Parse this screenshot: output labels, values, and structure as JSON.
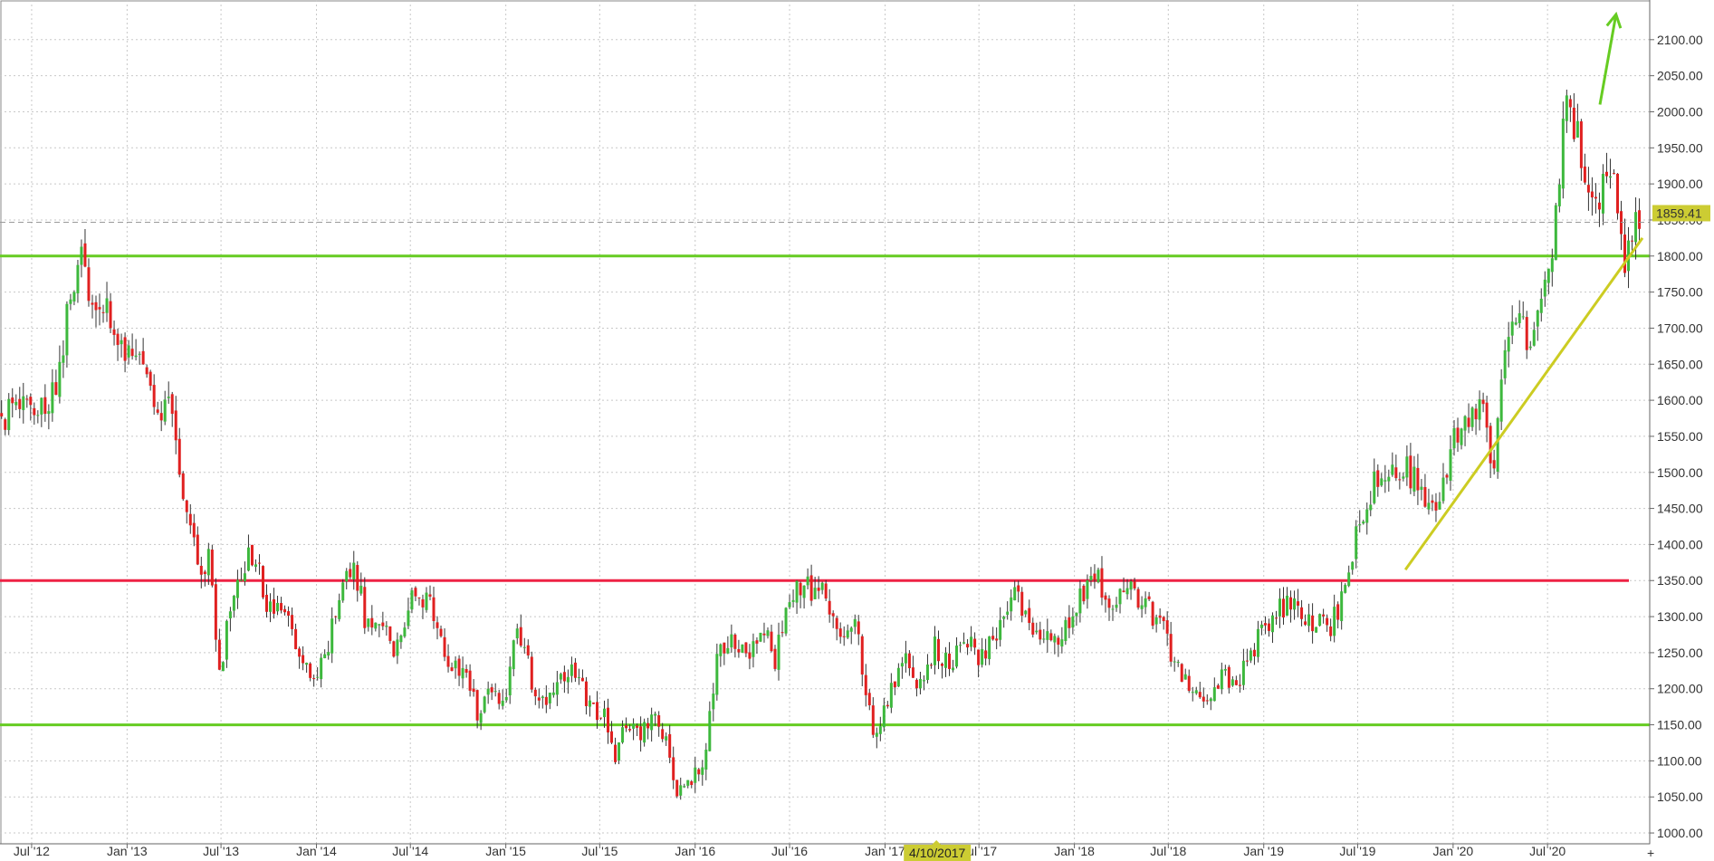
{
  "chart_data": {
    "type": "candlestick",
    "title": "",
    "xlabel": "",
    "ylabel": "",
    "ylim": [
      985,
      2155
    ],
    "grid": true,
    "y_ticks": [
      "1000.00",
      "1050.00",
      "1100.00",
      "1150.00",
      "1200.00",
      "1250.00",
      "1300.00",
      "1350.00",
      "1400.00",
      "1450.00",
      "1500.00",
      "1550.00",
      "1600.00",
      "1650.00",
      "1700.00",
      "1750.00",
      "1800.00",
      "1850.00",
      "1900.00",
      "1950.00",
      "2000.00",
      "2050.00",
      "2100.00"
    ],
    "x_ticks": [
      "Jul '12",
      "Jan '13",
      "Jul '13",
      "Jan '14",
      "Jul '14",
      "Jan '15",
      "Jul '15",
      "Jan '16",
      "Jul '16",
      "Jan '17",
      "Jul '17",
      "Jan '18",
      "Jul '18",
      "Jan '19",
      "Jul '19",
      "Jan '20",
      "Jul '20"
    ],
    "x_range": [
      "2012-05-01",
      "2020-12-31"
    ],
    "last_price": "1859.41",
    "crosshair_date_label": "4/10/2017",
    "series_close": [
      [
        "2012-05-25",
        1580
      ],
      [
        "2012-06-22",
        1600
      ],
      [
        "2012-07-20",
        1585
      ],
      [
        "2012-08-17",
        1620
      ],
      [
        "2012-09-14",
        1750
      ],
      [
        "2012-10-05",
        1790
      ],
      [
        "2012-10-26",
        1710
      ],
      [
        "2012-11-16",
        1730
      ],
      [
        "2012-12-07",
        1700
      ],
      [
        "2012-12-28",
        1660
      ],
      [
        "2013-01-25",
        1665
      ],
      [
        "2013-02-15",
        1610
      ],
      [
        "2013-03-08",
        1580
      ],
      [
        "2013-03-29",
        1600
      ],
      [
        "2013-04-12",
        1480
      ],
      [
        "2013-04-26",
        1460
      ],
      [
        "2013-05-17",
        1370
      ],
      [
        "2013-06-07",
        1380
      ],
      [
        "2013-06-28",
        1230
      ],
      [
        "2013-07-19",
        1300
      ],
      [
        "2013-08-16",
        1370
      ],
      [
        "2013-09-06",
        1390
      ],
      [
        "2013-09-27",
        1320
      ],
      [
        "2013-10-18",
        1320
      ],
      [
        "2013-11-08",
        1290
      ],
      [
        "2013-12-06",
        1230
      ],
      [
        "2013-12-27",
        1210
      ],
      [
        "2014-01-24",
        1260
      ],
      [
        "2014-02-14",
        1320
      ],
      [
        "2014-03-14",
        1380
      ],
      [
        "2014-04-04",
        1300
      ],
      [
        "2014-05-02",
        1300
      ],
      [
        "2014-05-30",
        1250
      ],
      [
        "2014-06-27",
        1315
      ],
      [
        "2014-07-18",
        1340
      ],
      [
        "2014-08-15",
        1305
      ],
      [
        "2014-09-12",
        1230
      ],
      [
        "2014-10-10",
        1220
      ],
      [
        "2014-11-07",
        1170
      ],
      [
        "2014-12-05",
        1200
      ],
      [
        "2015-01-02",
        1190
      ],
      [
        "2015-01-23",
        1295
      ],
      [
        "2015-02-20",
        1210
      ],
      [
        "2015-03-20",
        1180
      ],
      [
        "2015-04-17",
        1205
      ],
      [
        "2015-05-15",
        1225
      ],
      [
        "2015-06-12",
        1180
      ],
      [
        "2015-07-10",
        1160
      ],
      [
        "2015-07-31",
        1095
      ],
      [
        "2015-08-21",
        1160
      ],
      [
        "2015-09-18",
        1135
      ],
      [
        "2015-10-09",
        1155
      ],
      [
        "2015-10-30",
        1140
      ],
      [
        "2015-11-27",
        1060
      ],
      [
        "2015-12-18",
        1065
      ],
      [
        "2016-01-15",
        1090
      ],
      [
        "2016-02-12",
        1240
      ],
      [
        "2016-03-11",
        1260
      ],
      [
        "2016-04-08",
        1240
      ],
      [
        "2016-05-06",
        1290
      ],
      [
        "2016-06-03",
        1240
      ],
      [
        "2016-06-24",
        1320
      ],
      [
        "2016-07-15",
        1340
      ],
      [
        "2016-08-12",
        1340
      ],
      [
        "2016-09-09",
        1330
      ],
      [
        "2016-10-07",
        1255
      ],
      [
        "2016-11-04",
        1300
      ],
      [
        "2016-11-25",
        1180
      ],
      [
        "2016-12-16",
        1135
      ],
      [
        "2017-01-13",
        1195
      ],
      [
        "2017-02-10",
        1235
      ],
      [
        "2017-03-10",
        1205
      ],
      [
        "2017-04-07",
        1255
      ],
      [
        "2017-05-05",
        1230
      ],
      [
        "2017-06-02",
        1280
      ],
      [
        "2017-06-30",
        1240
      ],
      [
        "2017-07-28",
        1270
      ],
      [
        "2017-08-25",
        1290
      ],
      [
        "2017-09-08",
        1345
      ],
      [
        "2017-10-06",
        1275
      ],
      [
        "2017-11-03",
        1270
      ],
      [
        "2017-12-01",
        1275
      ],
      [
        "2017-12-22",
        1280
      ],
      [
        "2018-01-19",
        1335
      ],
      [
        "2018-02-16",
        1350
      ],
      [
        "2018-03-16",
        1315
      ],
      [
        "2018-04-13",
        1345
      ],
      [
        "2018-05-11",
        1320
      ],
      [
        "2018-06-08",
        1300
      ],
      [
        "2018-07-06",
        1255
      ],
      [
        "2018-08-03",
        1215
      ],
      [
        "2018-08-17",
        1180
      ],
      [
        "2018-09-14",
        1195
      ],
      [
        "2018-10-12",
        1220
      ],
      [
        "2018-11-09",
        1210
      ],
      [
        "2018-12-07",
        1250
      ],
      [
        "2019-01-04",
        1285
      ],
      [
        "2019-02-15",
        1320
      ],
      [
        "2019-03-15",
        1300
      ],
      [
        "2019-04-12",
        1290
      ],
      [
        "2019-05-10",
        1285
      ],
      [
        "2019-06-07",
        1340
      ],
      [
        "2019-06-28",
        1410
      ],
      [
        "2019-08-09",
        1500
      ],
      [
        "2019-09-06",
        1510
      ],
      [
        "2019-10-04",
        1505
      ],
      [
        "2019-11-08",
        1465
      ],
      [
        "2019-12-06",
        1460
      ],
      [
        "2020-01-03",
        1550
      ],
      [
        "2020-02-07",
        1570
      ],
      [
        "2020-02-28",
        1585
      ],
      [
        "2020-03-20",
        1500
      ],
      [
        "2020-04-10",
        1680
      ],
      [
        "2020-05-08",
        1700
      ],
      [
        "2020-06-05",
        1685
      ],
      [
        "2020-07-03",
        1770
      ],
      [
        "2020-07-24",
        1900
      ],
      [
        "2020-08-07",
        2035
      ],
      [
        "2020-08-28",
        1965
      ],
      [
        "2020-09-25",
        1865
      ],
      [
        "2020-10-23",
        1900
      ],
      [
        "2020-11-13",
        1885
      ],
      [
        "2020-11-27",
        1785
      ],
      [
        "2020-12-11",
        1840
      ],
      [
        "2020-12-31",
        1859
      ]
    ]
  },
  "colors": {
    "up_candle": "#3db83d",
    "down_candle": "#e02020",
    "support_line": "#66cc22",
    "resistance_line": "#ee2244",
    "trend_line": "#cccc22",
    "arrow": "#66cc22",
    "grid": "#c8c8c8",
    "price_highlight": "#cccc33"
  },
  "overlays": {
    "horizontal_levels": [
      {
        "kind": "support",
        "price": 1800
      },
      {
        "kind": "resistance",
        "price": 1350
      },
      {
        "kind": "support",
        "price": 1150
      }
    ],
    "trend_line": {
      "from": [
        "2019-10-01",
        1365
      ],
      "to": [
        "2020-12-31",
        1825
      ]
    },
    "arrow": {
      "from": [
        "2020-10-10",
        2010
      ],
      "to": [
        "2020-11-10",
        2135
      ]
    }
  }
}
